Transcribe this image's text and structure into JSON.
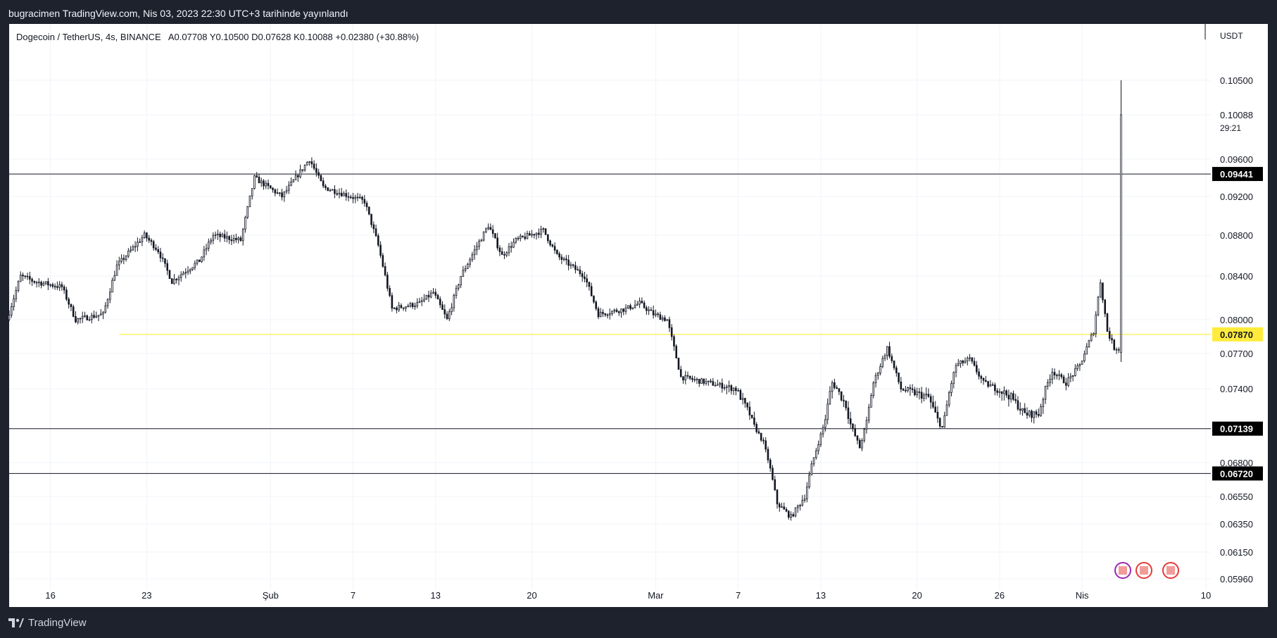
{
  "header": {
    "published": "bugracimen TradingView.com, Nis 03, 2023 22:30 UTC+3 tarihinde yayınlandı"
  },
  "legend": {
    "symbol": "Dogecoin / TetherUS, 4s, BINANCE",
    "ohlc": "A0.07708  Y0.10500  D0.07628  K0.10088  +0.02380 (+30.88%)"
  },
  "footer": {
    "brand": "TradingView"
  },
  "chart_data": {
    "type": "candlestick",
    "currency": "USDT",
    "y_ticks": [
      0.105,
      0.10088,
      0.096,
      0.092,
      0.088,
      0.084,
      0.08,
      0.077,
      0.074,
      0.068,
      0.0655,
      0.0635,
      0.0615,
      0.0596
    ],
    "y_tick_labels": [
      "0.10500",
      "0.10088",
      "0.09600",
      "0.09200",
      "0.08800",
      "0.08400",
      "0.08000",
      "0.07700",
      "0.07400",
      "0.06800",
      "0.06550",
      "0.06350",
      "0.06150",
      "0.05960"
    ],
    "countdown": "29:21",
    "x_ticks": [
      {
        "label": "16",
        "date": "2023-01-16"
      },
      {
        "label": "23",
        "date": "2023-01-23"
      },
      {
        "label": "Şub",
        "date": "2023-02-01"
      },
      {
        "label": "7",
        "date": "2023-02-07"
      },
      {
        "label": "13",
        "date": "2023-02-13"
      },
      {
        "label": "20",
        "date": "2023-02-20"
      },
      {
        "label": "Mar",
        "date": "2023-03-01"
      },
      {
        "label": "7",
        "date": "2023-03-07"
      },
      {
        "label": "13",
        "date": "2023-03-13"
      },
      {
        "label": "20",
        "date": "2023-03-20"
      },
      {
        "label": "26",
        "date": "2023-03-26"
      },
      {
        "label": "Nis",
        "date": "2023-04-01"
      },
      {
        "label": "10",
        "date": "2023-04-10"
      }
    ],
    "price_path": [
      [
        "2023-01-13",
        0.08
      ],
      [
        "2023-01-14",
        0.084
      ],
      [
        "2023-01-15",
        0.0835
      ],
      [
        "2023-01-17",
        0.083
      ],
      [
        "2023-01-18",
        0.08
      ],
      [
        "2023-01-20",
        0.0805
      ],
      [
        "2023-01-21",
        0.085
      ],
      [
        "2023-01-23",
        0.088
      ],
      [
        "2023-01-24",
        0.0865
      ],
      [
        "2023-01-25",
        0.0835
      ],
      [
        "2023-01-27",
        0.0855
      ],
      [
        "2023-01-28",
        0.088
      ],
      [
        "2023-01-30",
        0.0875
      ],
      [
        "2023-01-31",
        0.094
      ],
      [
        "2023-02-01",
        0.093
      ],
      [
        "2023-02-02",
        0.092
      ],
      [
        "2023-02-04",
        0.096
      ],
      [
        "2023-02-05",
        0.093
      ],
      [
        "2023-02-06",
        0.0925
      ],
      [
        "2023-02-08",
        0.0915
      ],
      [
        "2023-02-09",
        0.087
      ],
      [
        "2023-02-10",
        0.081
      ],
      [
        "2023-02-12",
        0.0815
      ],
      [
        "2023-02-13",
        0.0825
      ],
      [
        "2023-02-14",
        0.08
      ],
      [
        "2023-02-15",
        0.084
      ],
      [
        "2023-02-17",
        0.089
      ],
      [
        "2023-02-18",
        0.086
      ],
      [
        "2023-02-19",
        0.0875
      ],
      [
        "2023-02-21",
        0.0885
      ],
      [
        "2023-02-22",
        0.086
      ],
      [
        "2023-02-24",
        0.084
      ],
      [
        "2023-02-25",
        0.0805
      ],
      [
        "2023-02-27",
        0.081
      ],
      [
        "2023-02-28",
        0.0815
      ],
      [
        "2023-03-01",
        0.0805
      ],
      [
        "2023-03-02",
        0.08
      ],
      [
        "2023-03-03",
        0.075
      ],
      [
        "2023-03-05",
        0.0745
      ],
      [
        "2023-03-07",
        0.074
      ],
      [
        "2023-03-08",
        0.0725
      ],
      [
        "2023-03-09",
        0.07
      ],
      [
        "2023-03-10",
        0.065
      ],
      [
        "2023-03-11",
        0.064
      ],
      [
        "2023-03-12",
        0.0655
      ],
      [
        "2023-03-13",
        0.07
      ],
      [
        "2023-03-14",
        0.0745
      ],
      [
        "2023-03-15",
        0.073
      ],
      [
        "2023-03-16",
        0.0695
      ],
      [
        "2023-03-17",
        0.0745
      ],
      [
        "2023-03-18",
        0.0775
      ],
      [
        "2023-03-19",
        0.074
      ],
      [
        "2023-03-21",
        0.0735
      ],
      [
        "2023-03-22",
        0.0715
      ],
      [
        "2023-03-23",
        0.076
      ],
      [
        "2023-03-24",
        0.0765
      ],
      [
        "2023-03-25",
        0.0745
      ],
      [
        "2023-03-27",
        0.0735
      ],
      [
        "2023-03-28",
        0.0725
      ],
      [
        "2023-03-29",
        0.0725
      ],
      [
        "2023-03-30",
        0.0755
      ],
      [
        "2023-03-31",
        0.0745
      ],
      [
        "2023-04-01",
        0.076
      ],
      [
        "2023-04-02",
        0.079
      ],
      [
        "2023-04-02T12:00",
        0.0835
      ],
      [
        "2023-04-03",
        0.079
      ],
      [
        "2023-04-03T12:00",
        0.0775
      ]
    ],
    "last_candle": {
      "date": "2023-04-03T20:00",
      "open": 0.07708,
      "high": 0.105,
      "low": 0.07628,
      "close": 0.10088
    },
    "horizontal_lines": [
      {
        "value": 0.09441,
        "label": "0.09441",
        "color": "#131722"
      },
      {
        "value": 0.0787,
        "label": "0.07870",
        "color": "#ffeb3b",
        "start": "2023-01-21"
      },
      {
        "value": 0.07139,
        "label": "0.07139",
        "color": "#131722"
      },
      {
        "value": 0.0672,
        "label": "0.06720",
        "color": "#131722"
      }
    ],
    "colors": {
      "candle": "#131722",
      "background": "#ffffff",
      "grid": "#f0f3fa",
      "frame": "#1e222d",
      "yellow": "#ffeb3b"
    },
    "grid": true
  }
}
